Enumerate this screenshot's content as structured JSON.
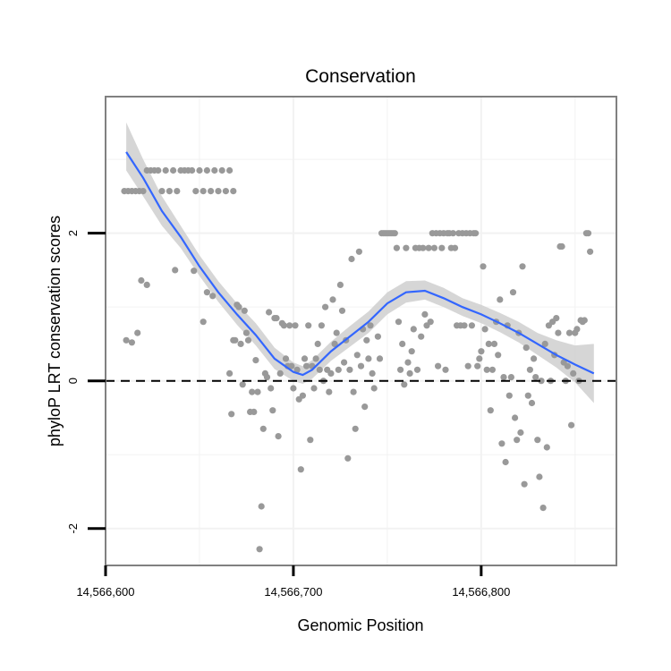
{
  "chart_data": {
    "type": "scatter",
    "title": "Conservation",
    "xlabel": "Genomic Position",
    "ylabel": "phyloP LRT conservation scores",
    "xlim": [
      14566600,
      14566872
    ],
    "ylim": [
      -2.5,
      3.85
    ],
    "x_ticks": [
      {
        "value": 14566600,
        "label": "14,566,600"
      },
      {
        "value": 14566700,
        "label": "14,566,700"
      },
      {
        "value": 14566800,
        "label": "14,566,800"
      }
    ],
    "y_ticks": [
      {
        "value": -2,
        "label": "-2"
      },
      {
        "value": 0,
        "label": "0"
      },
      {
        "value": 2,
        "label": "2"
      }
    ],
    "grid": true,
    "reference_line": {
      "y": 0,
      "style": "dashed"
    },
    "colors": {
      "points": "#999999",
      "smooth_line": "#3366ff",
      "confidence_band": "#cccccc",
      "panel_border": "#808080",
      "grid": "#f2f2f2"
    },
    "points": [
      [
        14566610,
        2.57
      ],
      [
        14566612,
        2.57
      ],
      [
        14566614,
        2.57
      ],
      [
        14566616,
        2.57
      ],
      [
        14566618,
        2.57
      ],
      [
        14566620,
        2.57
      ],
      [
        14566622,
        2.85
      ],
      [
        14566624,
        2.85
      ],
      [
        14566626,
        2.85
      ],
      [
        14566628,
        2.85
      ],
      [
        14566630,
        2.57
      ],
      [
        14566632,
        2.85
      ],
      [
        14566634,
        2.57
      ],
      [
        14566636,
        2.85
      ],
      [
        14566638,
        2.57
      ],
      [
        14566640,
        2.85
      ],
      [
        14566642,
        2.85
      ],
      [
        14566644,
        2.85
      ],
      [
        14566646,
        2.85
      ],
      [
        14566648,
        2.57
      ],
      [
        14566650,
        2.85
      ],
      [
        14566652,
        2.57
      ],
      [
        14566654,
        2.85
      ],
      [
        14566656,
        2.57
      ],
      [
        14566658,
        2.85
      ],
      [
        14566660,
        2.57
      ],
      [
        14566662,
        2.85
      ],
      [
        14566664,
        2.57
      ],
      [
        14566666,
        2.85
      ],
      [
        14566668,
        2.57
      ],
      [
        14566611,
        0.55
      ],
      [
        14566614,
        0.52
      ],
      [
        14566617,
        0.65
      ],
      [
        14566619,
        1.36
      ],
      [
        14566622,
        1.3
      ],
      [
        14566637,
        1.5
      ],
      [
        14566647,
        1.49
      ],
      [
        14566652,
        0.8
      ],
      [
        14566654,
        1.2
      ],
      [
        14566657,
        1.15
      ],
      [
        14566666,
        0.1
      ],
      [
        14566667,
        -0.45
      ],
      [
        14566668,
        0.55
      ],
      [
        14566669,
        0.55
      ],
      [
        14566670,
        1.03
      ],
      [
        14566671,
        1.0
      ],
      [
        14566672,
        0.5
      ],
      [
        14566673,
        -0.05
      ],
      [
        14566674,
        0.95
      ],
      [
        14566675,
        0.65
      ],
      [
        14566676,
        0.55
      ],
      [
        14566677,
        -0.42
      ],
      [
        14566678,
        -0.15
      ],
      [
        14566679,
        -0.42
      ],
      [
        14566680,
        0.28
      ],
      [
        14566681,
        -0.15
      ],
      [
        14566682,
        -2.28
      ],
      [
        14566683,
        -1.7
      ],
      [
        14566684,
        -0.65
      ],
      [
        14566685,
        0.1
      ],
      [
        14566686,
        0.05
      ],
      [
        14566687,
        0.93
      ],
      [
        14566688,
        -0.1
      ],
      [
        14566689,
        -0.4
      ],
      [
        14566690,
        0.85
      ],
      [
        14566691,
        0.85
      ],
      [
        14566692,
        -0.75
      ],
      [
        14566693,
        0.1
      ],
      [
        14566694,
        0.78
      ],
      [
        14566695,
        0.75
      ],
      [
        14566696,
        0.3
      ],
      [
        14566697,
        0.2
      ],
      [
        14566698,
        0.75
      ],
      [
        14566699,
        0.2
      ],
      [
        14566700,
        -0.1
      ],
      [
        14566701,
        0.75
      ],
      [
        14566702,
        0.15
      ],
      [
        14566703,
        -0.25
      ],
      [
        14566704,
        -1.2
      ],
      [
        14566705,
        -0.2
      ],
      [
        14566706,
        0.3
      ],
      [
        14566707,
        0.2
      ],
      [
        14566708,
        0.75
      ],
      [
        14566709,
        -0.8
      ],
      [
        14566710,
        0.2
      ],
      [
        14566711,
        -0.1
      ],
      [
        14566712,
        0.3
      ],
      [
        14566713,
        0.5
      ],
      [
        14566714,
        0.15
      ],
      [
        14566715,
        0.75
      ],
      [
        14566716,
        0.0
      ],
      [
        14566717,
        1.0
      ],
      [
        14566718,
        0.15
      ],
      [
        14566719,
        -0.15
      ],
      [
        14566720,
        0.1
      ],
      [
        14566721,
        1.1
      ],
      [
        14566722,
        0.5
      ],
      [
        14566723,
        0.65
      ],
      [
        14566724,
        0.15
      ],
      [
        14566725,
        1.3
      ],
      [
        14566726,
        0.95
      ],
      [
        14566727,
        0.25
      ],
      [
        14566728,
        0.55
      ],
      [
        14566729,
        -1.05
      ],
      [
        14566730,
        0.15
      ],
      [
        14566731,
        1.65
      ],
      [
        14566732,
        -0.15
      ],
      [
        14566733,
        -0.65
      ],
      [
        14566734,
        0.35
      ],
      [
        14566735,
        1.75
      ],
      [
        14566736,
        0.2
      ],
      [
        14566737,
        0.7
      ],
      [
        14566738,
        -0.35
      ],
      [
        14566739,
        0.55
      ],
      [
        14566740,
        0.3
      ],
      [
        14566741,
        0.75
      ],
      [
        14566742,
        0.1
      ],
      [
        14566743,
        -0.1
      ],
      [
        14566745,
        0.6
      ],
      [
        14566746,
        0.3
      ],
      [
        14566747,
        2.0
      ],
      [
        14566748,
        2.0
      ],
      [
        14566749,
        2.0
      ],
      [
        14566750,
        2.0
      ],
      [
        14566751,
        2.0
      ],
      [
        14566752,
        2.0
      ],
      [
        14566753,
        2.0
      ],
      [
        14566754,
        2.0
      ],
      [
        14566755,
        1.8
      ],
      [
        14566756,
        0.8
      ],
      [
        14566757,
        0.15
      ],
      [
        14566758,
        0.5
      ],
      [
        14566759,
        -0.05
      ],
      [
        14566760,
        1.8
      ],
      [
        14566761,
        0.25
      ],
      [
        14566762,
        0.1
      ],
      [
        14566763,
        0.4
      ],
      [
        14566764,
        0.7
      ],
      [
        14566765,
        1.8
      ],
      [
        14566766,
        0.15
      ],
      [
        14566767,
        1.8
      ],
      [
        14566768,
        0.6
      ],
      [
        14566769,
        1.8
      ],
      [
        14566770,
        0.9
      ],
      [
        14566771,
        0.75
      ],
      [
        14566772,
        1.8
      ],
      [
        14566773,
        0.8
      ],
      [
        14566774,
        2.0
      ],
      [
        14566775,
        1.8
      ],
      [
        14566776,
        2.0
      ],
      [
        14566777,
        0.2
      ],
      [
        14566778,
        2.0
      ],
      [
        14566779,
        1.8
      ],
      [
        14566780,
        2.0
      ],
      [
        14566781,
        0.15
      ],
      [
        14566782,
        2.0
      ],
      [
        14566783,
        2.0
      ],
      [
        14566784,
        1.8
      ],
      [
        14566785,
        2.0
      ],
      [
        14566786,
        1.8
      ],
      [
        14566787,
        0.75
      ],
      [
        14566788,
        2.0
      ],
      [
        14566789,
        0.75
      ],
      [
        14566790,
        2.0
      ],
      [
        14566791,
        0.75
      ],
      [
        14566792,
        2.0
      ],
      [
        14566793,
        0.2
      ],
      [
        14566794,
        2.0
      ],
      [
        14566795,
        0.75
      ],
      [
        14566796,
        2.0
      ],
      [
        14566797,
        2.0
      ],
      [
        14566798,
        0.2
      ],
      [
        14566799,
        0.3
      ],
      [
        14566800,
        0.4
      ],
      [
        14566801,
        1.55
      ],
      [
        14566802,
        0.7
      ],
      [
        14566803,
        0.15
      ],
      [
        14566804,
        0.5
      ],
      [
        14566805,
        -0.4
      ],
      [
        14566806,
        0.15
      ],
      [
        14566807,
        0.5
      ],
      [
        14566808,
        0.8
      ],
      [
        14566809,
        0.35
      ],
      [
        14566810,
        1.1
      ],
      [
        14566811,
        -0.85
      ],
      [
        14566812,
        0.05
      ],
      [
        14566813,
        -1.1
      ],
      [
        14566814,
        0.75
      ],
      [
        14566815,
        -0.2
      ],
      [
        14566816,
        0.05
      ],
      [
        14566817,
        1.2
      ],
      [
        14566818,
        -0.5
      ],
      [
        14566819,
        -0.8
      ],
      [
        14566820,
        0.65
      ],
      [
        14566821,
        -0.7
      ],
      [
        14566822,
        1.55
      ],
      [
        14566823,
        -1.4
      ],
      [
        14566824,
        0.45
      ],
      [
        14566825,
        -0.2
      ],
      [
        14566826,
        0.15
      ],
      [
        14566827,
        -0.3
      ],
      [
        14566828,
        0.3
      ],
      [
        14566829,
        0.05
      ],
      [
        14566830,
        -0.8
      ],
      [
        14566831,
        -1.3
      ],
      [
        14566832,
        0.0
      ],
      [
        14566833,
        -1.72
      ],
      [
        14566834,
        0.5
      ],
      [
        14566835,
        -0.9
      ],
      [
        14566836,
        0.75
      ],
      [
        14566837,
        0.0
      ],
      [
        14566838,
        0.8
      ],
      [
        14566839,
        0.35
      ],
      [
        14566840,
        0.85
      ],
      [
        14566841,
        0.65
      ],
      [
        14566842,
        1.82
      ],
      [
        14566843,
        1.82
      ],
      [
        14566844,
        0.25
      ],
      [
        14566845,
        0.0
      ],
      [
        14566846,
        0.2
      ],
      [
        14566847,
        0.65
      ],
      [
        14566848,
        -0.6
      ],
      [
        14566849,
        0.1
      ],
      [
        14566850,
        0.65
      ],
      [
        14566851,
        0.7
      ],
      [
        14566852,
        0.0
      ],
      [
        14566853,
        0.82
      ],
      [
        14566854,
        0.8
      ],
      [
        14566855,
        0.82
      ],
      [
        14566856,
        2.0
      ],
      [
        14566857,
        2.0
      ],
      [
        14566858,
        1.75
      ]
    ],
    "smooth": [
      {
        "x": 14566611,
        "y": 3.1,
        "lo": 2.85,
        "hi": 3.5
      },
      {
        "x": 14566620,
        "y": 2.75,
        "lo": 2.5,
        "hi": 3.0
      },
      {
        "x": 14566630,
        "y": 2.3,
        "lo": 2.1,
        "hi": 2.5
      },
      {
        "x": 14566640,
        "y": 1.95,
        "lo": 1.8,
        "hi": 2.1
      },
      {
        "x": 14566650,
        "y": 1.55,
        "lo": 1.42,
        "hi": 1.7
      },
      {
        "x": 14566660,
        "y": 1.2,
        "lo": 1.07,
        "hi": 1.35
      },
      {
        "x": 14566670,
        "y": 0.9,
        "lo": 0.76,
        "hi": 1.05
      },
      {
        "x": 14566680,
        "y": 0.62,
        "lo": 0.48,
        "hi": 0.78
      },
      {
        "x": 14566690,
        "y": 0.3,
        "lo": 0.16,
        "hi": 0.45
      },
      {
        "x": 14566700,
        "y": 0.12,
        "lo": 0.0,
        "hi": 0.25
      },
      {
        "x": 14566705,
        "y": 0.08,
        "lo": -0.04,
        "hi": 0.2
      },
      {
        "x": 14566710,
        "y": 0.15,
        "lo": 0.03,
        "hi": 0.28
      },
      {
        "x": 14566720,
        "y": 0.4,
        "lo": 0.27,
        "hi": 0.53
      },
      {
        "x": 14566730,
        "y": 0.6,
        "lo": 0.46,
        "hi": 0.74
      },
      {
        "x": 14566740,
        "y": 0.8,
        "lo": 0.65,
        "hi": 0.94
      },
      {
        "x": 14566750,
        "y": 1.05,
        "lo": 0.9,
        "hi": 1.2
      },
      {
        "x": 14566760,
        "y": 1.2,
        "lo": 1.06,
        "hi": 1.35
      },
      {
        "x": 14566770,
        "y": 1.22,
        "lo": 1.1,
        "hi": 1.36
      },
      {
        "x": 14566780,
        "y": 1.12,
        "lo": 1.0,
        "hi": 1.26
      },
      {
        "x": 14566790,
        "y": 1.0,
        "lo": 0.88,
        "hi": 1.12
      },
      {
        "x": 14566800,
        "y": 0.9,
        "lo": 0.78,
        "hi": 1.03
      },
      {
        "x": 14566810,
        "y": 0.78,
        "lo": 0.66,
        "hi": 0.92
      },
      {
        "x": 14566820,
        "y": 0.65,
        "lo": 0.52,
        "hi": 0.8
      },
      {
        "x": 14566830,
        "y": 0.5,
        "lo": 0.35,
        "hi": 0.65
      },
      {
        "x": 14566840,
        "y": 0.35,
        "lo": 0.18,
        "hi": 0.55
      },
      {
        "x": 14566850,
        "y": 0.22,
        "lo": -0.02,
        "hi": 0.48
      },
      {
        "x": 14566860,
        "y": 0.1,
        "lo": -0.3,
        "hi": 0.5
      }
    ]
  }
}
